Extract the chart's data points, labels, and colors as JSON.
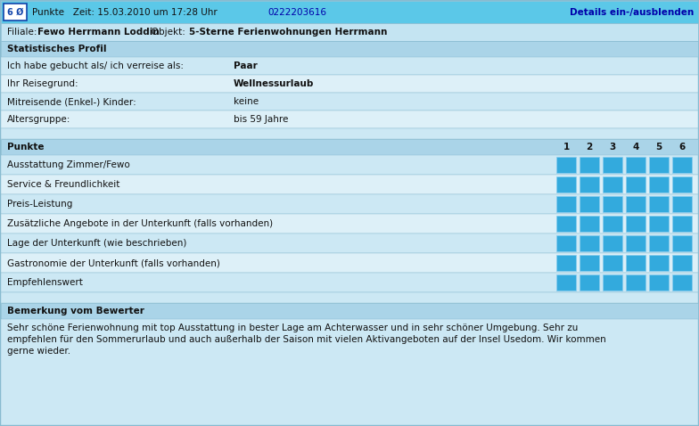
{
  "bg_color": "#cce8f4",
  "header_bg": "#5bc8e8",
  "cell_blue": "#33aadd",
  "cell_light": "#aaddee",
  "section_bg": "#aad4e8",
  "row_alt1": "#cce8f4",
  "row_alt2": "#ddf0f8",
  "border_color": "#88bbd0",
  "title_row": {
    "points_box_text": "6 Ø",
    "time_text": "Punkte   Zeit: 15.03.2010 um 17:28 Uhr",
    "phone": "0222203616",
    "link": "Details ein-/ausblenden"
  },
  "filiale_label1": "Filiale: ",
  "filiale_bold1": "Fewo Herrmann Loddin",
  "filiale_label2": "   Objekt: ",
  "filiale_bold2": "5-Sterne Ferienwohnungen Herrmann",
  "section1_title": "Statistisches Profil",
  "profile_rows": [
    {
      "label": "Ich habe gebucht als/ ich verreise als:",
      "value": "Paar",
      "bold_value": true
    },
    {
      "label": "Ihr Reisegrund:",
      "value": "Wellnessurlaub",
      "bold_value": true
    },
    {
      "label": "Mitreisende (Enkel-) Kinder:",
      "value": "keine",
      "bold_value": false
    },
    {
      "label": "Altersgruppe:",
      "value": "bis 59 Jahre",
      "bold_value": false
    }
  ],
  "punkte_section_title": "Punkte",
  "punkte_cols": [
    "1",
    "2",
    "3",
    "4",
    "5",
    "6"
  ],
  "punkte_rows": [
    "Ausstattung Zimmer/Fewo",
    "Service & Freundlichkeit",
    "Preis-Leistung",
    "Zusätzliche Angebote in der Unterkunft (falls vorhanden)",
    "Lage der Unterkunft (wie beschrieben)",
    "Gastronomie der Unterkunft (falls vorhanden)",
    "Empfehlenswert"
  ],
  "punkte_scores": [
    6,
    6,
    6,
    6,
    6,
    6,
    6
  ],
  "bemerkung_title": "Bemerkung vom Bewerter",
  "bem_line1": "Sehr schöne Ferienwohnung mit top Ausstattung in bester Lage am Achterwasser und in sehr schöner Umgebung. Sehr zu",
  "bem_line2": "empfehlen für den Sommerurlaub und auch außerhalb der Saison mit vielen Aktivangeboten auf der Insel Usedom. Wir kommen",
  "bem_line3": "gerne wieder.",
  "fs": 7.5,
  "fs_small": 7.0
}
